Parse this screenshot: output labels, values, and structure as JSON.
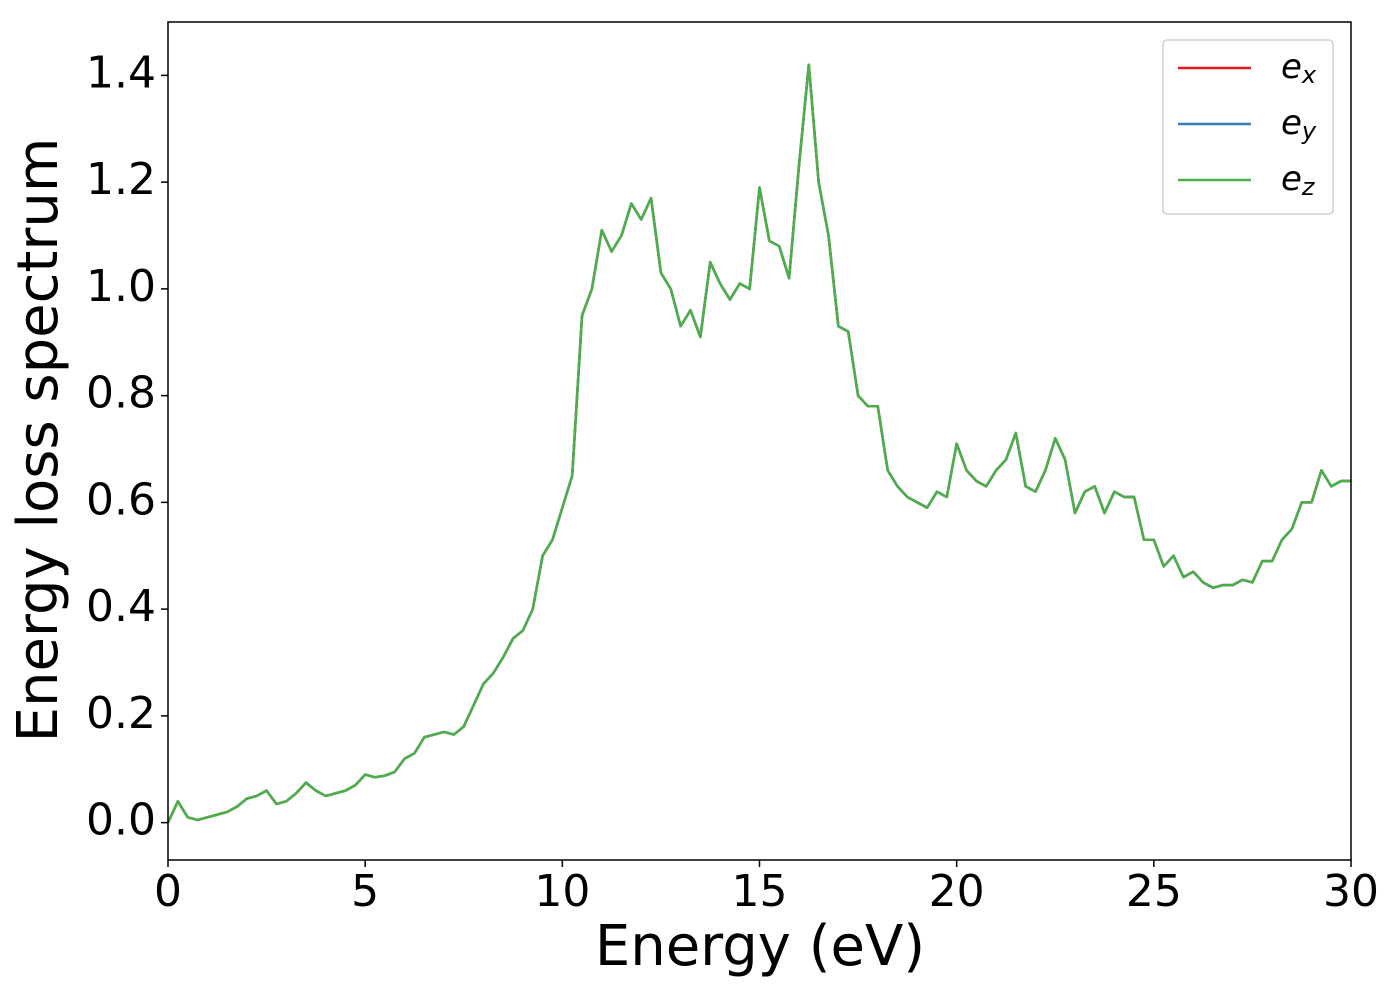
{
  "chart_data": {
    "type": "line",
    "xlabel": "Energy (eV)",
    "ylabel": "Energy loss spectrum",
    "xlim": [
      0,
      30
    ],
    "ylim": [
      -0.07,
      1.5
    ],
    "xticks": [
      0,
      5,
      10,
      15,
      20,
      25,
      30
    ],
    "yticks": [
      {
        "value": 0,
        "label": "0.0"
      },
      0.2,
      0.4,
      0.6,
      0.8,
      {
        "value": 1,
        "label": "1.0"
      },
      1.2,
      1.4
    ],
    "legend": "upper right",
    "grid": false,
    "x": [
      0,
      0.25,
      0.5,
      0.75,
      1,
      1.25,
      1.5,
      1.75,
      2,
      2.25,
      2.5,
      2.75,
      3,
      3.25,
      3.5,
      3.75,
      4,
      4.25,
      4.5,
      4.75,
      5,
      5.25,
      5.5,
      5.75,
      6,
      6.25,
      6.5,
      6.75,
      7,
      7.25,
      7.5,
      7.75,
      8,
      8.25,
      8.5,
      8.75,
      9,
      9.25,
      9.5,
      9.75,
      10,
      10.25,
      10.5,
      10.75,
      11,
      11.25,
      11.5,
      11.75,
      12,
      12.25,
      12.5,
      12.75,
      13,
      13.25,
      13.5,
      13.75,
      14,
      14.25,
      14.5,
      14.75,
      15,
      15.25,
      15.5,
      15.75,
      16,
      16.25,
      16.5,
      16.75,
      17,
      17.25,
      17.5,
      17.75,
      18,
      18.25,
      18.5,
      18.75,
      19,
      19.25,
      19.5,
      19.75,
      20,
      20.25,
      20.5,
      20.75,
      21,
      21.25,
      21.5,
      21.75,
      22,
      22.25,
      22.5,
      22.75,
      23,
      23.25,
      23.5,
      23.75,
      24,
      24.25,
      24.5,
      24.75,
      25,
      25.25,
      25.5,
      25.75,
      26,
      26.25,
      26.5,
      26.75,
      27,
      27.25,
      27.5,
      27.75,
      28,
      28.25,
      28.5,
      28.75,
      29,
      29.25,
      29.5,
      29.75,
      30
    ],
    "series": [
      {
        "name": "e_x",
        "color": "#e41a1c",
        "values": [
          0,
          0.04,
          0.01,
          0.005,
          0.01,
          0.015,
          0.02,
          0.03,
          0.045,
          0.05,
          0.06,
          0.035,
          0.04,
          0.055,
          0.075,
          0.06,
          0.05,
          0.055,
          0.06,
          0.07,
          0.09,
          0.085,
          0.088,
          0.095,
          0.12,
          0.13,
          0.16,
          0.165,
          0.17,
          0.165,
          0.18,
          0.22,
          0.26,
          0.28,
          0.31,
          0.345,
          0.36,
          0.4,
          0.5,
          0.53,
          0.59,
          0.65,
          0.95,
          1,
          1.11,
          1.07,
          1.1,
          1.16,
          1.13,
          1.17,
          1.03,
          1,
          0.93,
          0.96,
          0.91,
          1.05,
          1.01,
          0.98,
          1.01,
          1,
          1.19,
          1.09,
          1.08,
          1.02,
          1.23,
          1.42,
          1.2,
          1.1,
          0.93,
          0.92,
          0.8,
          0.78,
          0.78,
          0.66,
          0.63,
          0.61,
          0.6,
          0.59,
          0.62,
          0.61,
          0.71,
          0.66,
          0.64,
          0.63,
          0.66,
          0.68,
          0.73,
          0.63,
          0.62,
          0.66,
          0.72,
          0.68,
          0.58,
          0.62,
          0.63,
          0.58,
          0.62,
          0.61,
          0.61,
          0.53,
          0.53,
          0.48,
          0.5,
          0.46,
          0.47,
          0.45,
          0.44,
          0.445,
          0.445,
          0.455,
          0.45,
          0.49,
          0.49,
          0.53,
          0.55,
          0.6,
          0.6,
          0.66,
          0.63,
          0.64,
          0.64
        ]
      },
      {
        "name": "e_y",
        "color": "#377eb8",
        "values": [
          0,
          0.04,
          0.01,
          0.005,
          0.01,
          0.015,
          0.02,
          0.03,
          0.045,
          0.05,
          0.06,
          0.035,
          0.04,
          0.055,
          0.075,
          0.06,
          0.05,
          0.055,
          0.06,
          0.07,
          0.09,
          0.085,
          0.088,
          0.095,
          0.12,
          0.13,
          0.16,
          0.165,
          0.17,
          0.165,
          0.18,
          0.22,
          0.26,
          0.28,
          0.31,
          0.345,
          0.36,
          0.4,
          0.5,
          0.53,
          0.59,
          0.65,
          0.95,
          1,
          1.11,
          1.07,
          1.1,
          1.16,
          1.13,
          1.17,
          1.03,
          1,
          0.93,
          0.96,
          0.91,
          1.05,
          1.01,
          0.98,
          1.01,
          1,
          1.19,
          1.09,
          1.08,
          1.02,
          1.23,
          1.42,
          1.2,
          1.1,
          0.93,
          0.92,
          0.8,
          0.78,
          0.78,
          0.66,
          0.63,
          0.61,
          0.6,
          0.59,
          0.62,
          0.61,
          0.71,
          0.66,
          0.64,
          0.63,
          0.66,
          0.68,
          0.73,
          0.63,
          0.62,
          0.66,
          0.72,
          0.68,
          0.58,
          0.62,
          0.63,
          0.58,
          0.62,
          0.61,
          0.61,
          0.53,
          0.53,
          0.48,
          0.5,
          0.46,
          0.47,
          0.45,
          0.44,
          0.445,
          0.445,
          0.455,
          0.45,
          0.49,
          0.49,
          0.53,
          0.55,
          0.6,
          0.6,
          0.66,
          0.63,
          0.64,
          0.64
        ]
      },
      {
        "name": "e_z",
        "color": "#4daf4a",
        "values": [
          0,
          0.04,
          0.01,
          0.005,
          0.01,
          0.015,
          0.02,
          0.03,
          0.045,
          0.05,
          0.06,
          0.035,
          0.04,
          0.055,
          0.075,
          0.06,
          0.05,
          0.055,
          0.06,
          0.07,
          0.09,
          0.085,
          0.088,
          0.095,
          0.12,
          0.13,
          0.16,
          0.165,
          0.17,
          0.165,
          0.18,
          0.22,
          0.26,
          0.28,
          0.31,
          0.345,
          0.36,
          0.4,
          0.5,
          0.53,
          0.59,
          0.65,
          0.95,
          1,
          1.11,
          1.07,
          1.1,
          1.16,
          1.13,
          1.17,
          1.03,
          1,
          0.93,
          0.96,
          0.91,
          1.05,
          1.01,
          0.98,
          1.01,
          1,
          1.19,
          1.09,
          1.08,
          1.02,
          1.23,
          1.42,
          1.2,
          1.1,
          0.93,
          0.92,
          0.8,
          0.78,
          0.78,
          0.66,
          0.63,
          0.61,
          0.6,
          0.59,
          0.62,
          0.61,
          0.71,
          0.66,
          0.64,
          0.63,
          0.66,
          0.68,
          0.73,
          0.63,
          0.62,
          0.66,
          0.72,
          0.68,
          0.58,
          0.62,
          0.63,
          0.58,
          0.62,
          0.61,
          0.61,
          0.53,
          0.53,
          0.48,
          0.5,
          0.46,
          0.47,
          0.45,
          0.44,
          0.445,
          0.445,
          0.455,
          0.45,
          0.49,
          0.49,
          0.53,
          0.55,
          0.6,
          0.6,
          0.66,
          0.63,
          0.64,
          0.64
        ]
      }
    ]
  }
}
